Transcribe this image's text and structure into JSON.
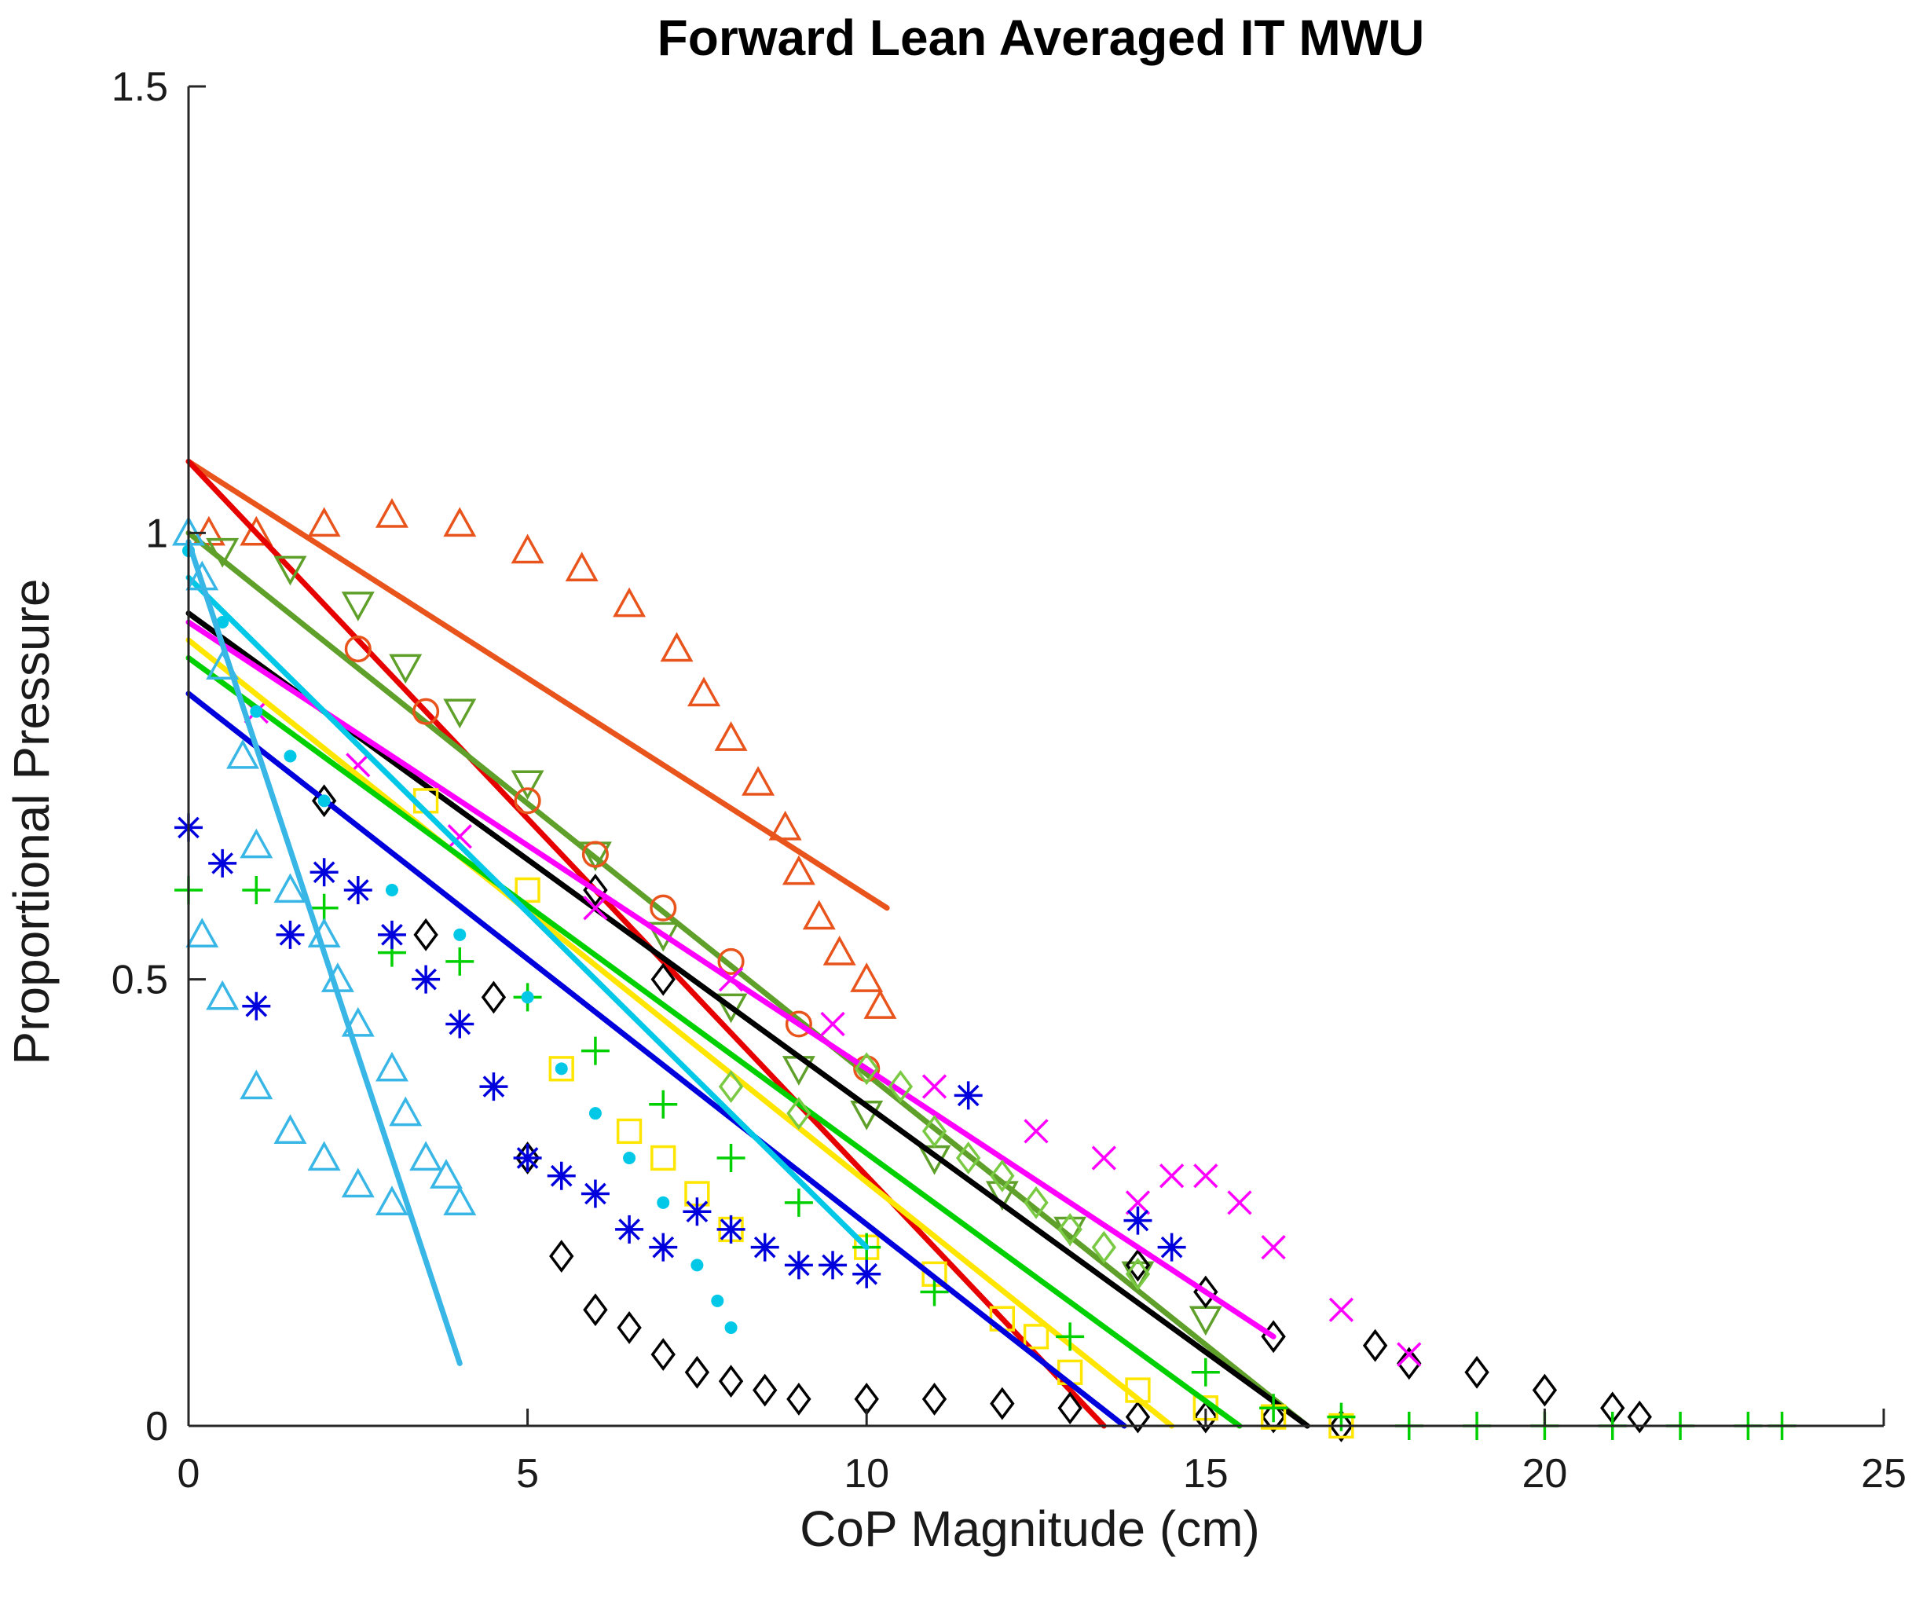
{
  "chart_data": {
    "type": "scatter",
    "title": "Forward Lean Averaged IT MWU",
    "xlabel": "CoP Magnitude (cm)",
    "ylabel": "Proportional Pressure",
    "xlim": [
      0,
      25
    ],
    "ylim": [
      0,
      1.5
    ],
    "xticks": [
      0,
      5,
      10,
      15,
      20,
      25
    ],
    "yticks": [
      0,
      0.5,
      1,
      1.5
    ],
    "xtick_labels": [
      "0",
      "5",
      "10",
      "15",
      "20",
      "25"
    ],
    "ytick_labels": [
      "0",
      "0.5",
      "1",
      "1.5"
    ],
    "grid": false,
    "legend": "none",
    "series": [
      {
        "name": "orange-triangle",
        "color": "#e8541c",
        "marker": "triangle",
        "points": [
          [
            0.3,
            1.0
          ],
          [
            1,
            1.0
          ],
          [
            2,
            1.01
          ],
          [
            3,
            1.02
          ],
          [
            4,
            1.01
          ],
          [
            5,
            0.98
          ],
          [
            5.8,
            0.96
          ],
          [
            6.5,
            0.92
          ],
          [
            7.2,
            0.87
          ],
          [
            7.6,
            0.82
          ],
          [
            8,
            0.77
          ],
          [
            8.4,
            0.72
          ],
          [
            8.8,
            0.67
          ],
          [
            9,
            0.62
          ],
          [
            9.3,
            0.57
          ],
          [
            9.6,
            0.53
          ],
          [
            10,
            0.5
          ],
          [
            10.2,
            0.47
          ]
        ],
        "fit": [
          [
            0,
            1.08
          ],
          [
            10.3,
            0.58
          ]
        ]
      },
      {
        "name": "red-line",
        "color": "#e60000",
        "marker": "none",
        "points": [
          [
            12.2,
            0.1
          ],
          [
            12.5,
            0.09
          ]
        ],
        "fit": [
          [
            0,
            1.08
          ],
          [
            13.5,
            0.0
          ]
        ]
      },
      {
        "name": "olive-triangle-down",
        "color": "#5fa02a",
        "marker": "triangle-down",
        "points": [
          [
            0.5,
            0.98
          ],
          [
            1.5,
            0.96
          ],
          [
            2.5,
            0.92
          ],
          [
            3.2,
            0.85
          ],
          [
            4,
            0.8
          ],
          [
            5,
            0.72
          ],
          [
            6,
            0.64
          ],
          [
            7,
            0.55
          ],
          [
            8,
            0.47
          ],
          [
            9,
            0.4
          ],
          [
            10,
            0.35
          ],
          [
            11,
            0.3
          ],
          [
            12,
            0.26
          ],
          [
            13,
            0.22
          ],
          [
            14,
            0.17
          ],
          [
            15,
            0.12
          ]
        ],
        "fit": [
          [
            0,
            1.0
          ],
          [
            16.5,
            0.0
          ]
        ]
      },
      {
        "name": "orange-circle",
        "color": "#e8541c",
        "marker": "circle",
        "points": [
          [
            2.5,
            0.87
          ],
          [
            3.5,
            0.8
          ],
          [
            5,
            0.7
          ],
          [
            6,
            0.64
          ],
          [
            7,
            0.58
          ],
          [
            8,
            0.52
          ],
          [
            9,
            0.45
          ],
          [
            10,
            0.4
          ]
        ],
        "fit": null
      },
      {
        "name": "black-line",
        "color": "#000000",
        "marker": "none",
        "points": [],
        "fit": [
          [
            0,
            0.91
          ],
          [
            16.5,
            0.0
          ]
        ]
      },
      {
        "name": "black-diamond",
        "color": "#000000",
        "marker": "diamond",
        "points": [
          [
            2,
            0.7
          ],
          [
            3.5,
            0.55
          ],
          [
            4.5,
            0.48
          ],
          [
            5,
            0.3
          ],
          [
            5.5,
            0.19
          ],
          [
            6,
            0.13
          ],
          [
            6.5,
            0.11
          ],
          [
            7,
            0.08
          ],
          [
            7.5,
            0.06
          ],
          [
            8,
            0.05
          ],
          [
            8.5,
            0.04
          ],
          [
            9,
            0.03
          ],
          [
            10,
            0.03
          ],
          [
            11,
            0.03
          ],
          [
            12,
            0.025
          ],
          [
            13,
            0.02
          ],
          [
            14,
            0.01
          ],
          [
            15,
            0.01
          ],
          [
            16,
            0.01
          ],
          [
            17,
            0.0
          ],
          [
            18,
            0.07
          ],
          [
            19,
            0.06
          ],
          [
            20,
            0.04
          ],
          [
            21,
            0.02
          ],
          [
            21.4,
            0.01
          ],
          [
            17.5,
            0.09
          ],
          [
            16,
            0.1
          ],
          [
            15,
            0.15
          ],
          [
            14,
            0.18
          ],
          [
            7,
            0.5
          ],
          [
            6,
            0.6
          ]
        ],
        "fit": null
      },
      {
        "name": "magenta-x",
        "color": "#ff00ff",
        "marker": "x",
        "points": [
          [
            1,
            0.8
          ],
          [
            2.5,
            0.74
          ],
          [
            4,
            0.66
          ],
          [
            6,
            0.58
          ],
          [
            8,
            0.5
          ],
          [
            9.5,
            0.45
          ],
          [
            11,
            0.38
          ],
          [
            12.5,
            0.33
          ],
          [
            13.5,
            0.3
          ],
          [
            14,
            0.25
          ],
          [
            14.5,
            0.28
          ],
          [
            15,
            0.28
          ],
          [
            15.5,
            0.25
          ],
          [
            16,
            0.2
          ],
          [
            17,
            0.13
          ],
          [
            18,
            0.08
          ]
        ],
        "fit": [
          [
            0,
            0.9
          ],
          [
            16,
            0.1
          ]
        ]
      },
      {
        "name": "yellow-square",
        "color": "#ffe600",
        "marker": "square",
        "points": [
          [
            3.5,
            0.7
          ],
          [
            5,
            0.6
          ],
          [
            5.5,
            0.4
          ],
          [
            6.5,
            0.33
          ],
          [
            7,
            0.3
          ],
          [
            7.5,
            0.26
          ],
          [
            8,
            0.22
          ],
          [
            10,
            0.2
          ],
          [
            11,
            0.17
          ],
          [
            12,
            0.12
          ],
          [
            12.5,
            0.1
          ],
          [
            13,
            0.06
          ],
          [
            14,
            0.04
          ],
          [
            15,
            0.02
          ],
          [
            16,
            0.01
          ],
          [
            17,
            0.0
          ]
        ],
        "fit": [
          [
            0,
            0.88
          ],
          [
            14.5,
            0.0
          ]
        ]
      },
      {
        "name": "green-plus",
        "color": "#00d000",
        "marker": "plus",
        "points": [
          [
            0,
            0.6
          ],
          [
            1,
            0.6
          ],
          [
            2,
            0.58
          ],
          [
            3,
            0.53
          ],
          [
            4,
            0.52
          ],
          [
            5,
            0.48
          ],
          [
            6,
            0.42
          ],
          [
            7,
            0.36
          ],
          [
            8,
            0.3
          ],
          [
            9,
            0.25
          ],
          [
            10,
            0.2
          ],
          [
            11,
            0.15
          ],
          [
            13,
            0.1
          ],
          [
            15,
            0.06
          ],
          [
            16,
            0.02
          ],
          [
            17,
            0.01
          ],
          [
            18,
            0.0
          ],
          [
            19,
            0.0
          ],
          [
            20,
            0.0
          ],
          [
            21,
            0.0
          ],
          [
            22,
            0.0
          ],
          [
            23,
            0.0
          ],
          [
            23.5,
            0.0
          ]
        ],
        "fit": [
          [
            0,
            0.86
          ],
          [
            15.5,
            0.0
          ]
        ]
      },
      {
        "name": "blue-star",
        "color": "#0000dd",
        "marker": "star",
        "points": [
          [
            0,
            0.67
          ],
          [
            0.5,
            0.63
          ],
          [
            1,
            0.47
          ],
          [
            1.5,
            0.55
          ],
          [
            2,
            0.62
          ],
          [
            2.5,
            0.6
          ],
          [
            3,
            0.55
          ],
          [
            3.5,
            0.5
          ],
          [
            4,
            0.45
          ],
          [
            4.5,
            0.38
          ],
          [
            5,
            0.3
          ],
          [
            5.5,
            0.28
          ],
          [
            6,
            0.26
          ],
          [
            6.5,
            0.22
          ],
          [
            7,
            0.2
          ],
          [
            7.5,
            0.24
          ],
          [
            8,
            0.22
          ],
          [
            8.5,
            0.2
          ],
          [
            9,
            0.18
          ],
          [
            9.5,
            0.18
          ],
          [
            10,
            0.17
          ],
          [
            11.5,
            0.37
          ],
          [
            14,
            0.23
          ],
          [
            14.5,
            0.2
          ]
        ],
        "fit": [
          [
            0,
            0.82
          ],
          [
            13.8,
            0.0
          ]
        ]
      },
      {
        "name": "cyan-dot",
        "color": "#00c8e6",
        "marker": "dot",
        "points": [
          [
            0,
            0.98
          ],
          [
            0.5,
            0.9
          ],
          [
            1,
            0.8
          ],
          [
            1.5,
            0.75
          ],
          [
            2,
            0.7
          ],
          [
            3,
            0.6
          ],
          [
            4,
            0.55
          ],
          [
            5,
            0.48
          ],
          [
            5.5,
            0.4
          ],
          [
            6,
            0.35
          ],
          [
            6.5,
            0.3
          ],
          [
            7,
            0.25
          ],
          [
            7.5,
            0.18
          ],
          [
            7.8,
            0.14
          ],
          [
            8,
            0.11
          ]
        ],
        "fit": [
          [
            0,
            0.95
          ],
          [
            10,
            0.2
          ]
        ]
      },
      {
        "name": "sky-triangle",
        "color": "#38b6e6",
        "marker": "triangle",
        "points": [
          [
            0,
            1.0
          ],
          [
            0.2,
            0.95
          ],
          [
            0.5,
            0.85
          ],
          [
            0.8,
            0.75
          ],
          [
            1,
            0.65
          ],
          [
            1.5,
            0.6
          ],
          [
            2,
            0.55
          ],
          [
            2.2,
            0.5
          ],
          [
            2.5,
            0.45
          ],
          [
            3,
            0.4
          ],
          [
            3.2,
            0.35
          ],
          [
            3.5,
            0.3
          ],
          [
            3.8,
            0.28
          ],
          [
            4,
            0.25
          ],
          [
            0.2,
            0.55
          ],
          [
            0.5,
            0.48
          ],
          [
            1,
            0.38
          ],
          [
            1.5,
            0.33
          ],
          [
            2,
            0.3
          ],
          [
            2.5,
            0.27
          ],
          [
            3,
            0.25
          ]
        ],
        "fit": [
          [
            0,
            0.99
          ],
          [
            4,
            0.07
          ]
        ]
      },
      {
        "name": "lime-diamond",
        "color": "#7ac943",
        "marker": "diamond",
        "points": [
          [
            8,
            0.38
          ],
          [
            9,
            0.35
          ],
          [
            10,
            0.4
          ],
          [
            10.5,
            0.38
          ],
          [
            11,
            0.33
          ],
          [
            11.5,
            0.3
          ],
          [
            12,
            0.28
          ],
          [
            12.5,
            0.25
          ],
          [
            13,
            0.22
          ],
          [
            13.5,
            0.2
          ],
          [
            14,
            0.17
          ]
        ],
        "fit": null
      }
    ]
  }
}
